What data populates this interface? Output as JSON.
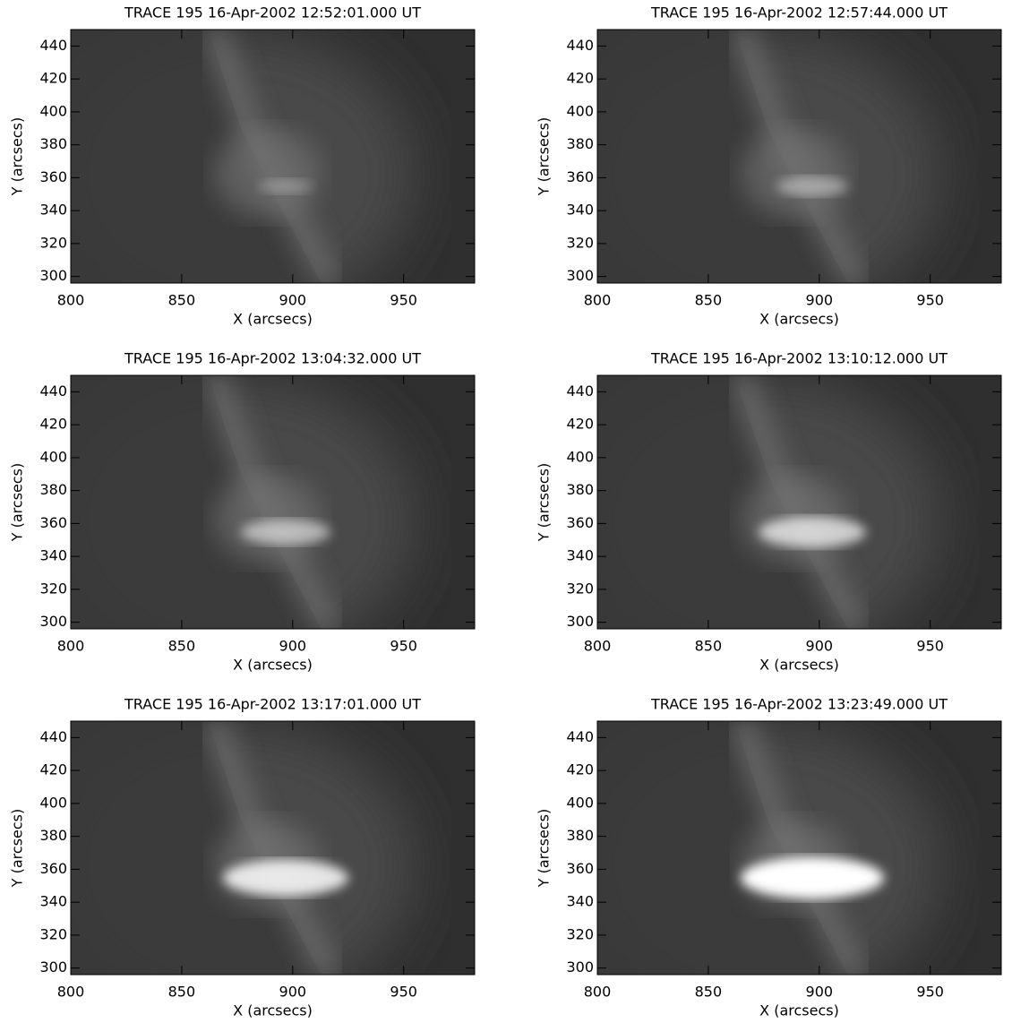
{
  "chart_data": [
    {
      "type": "image",
      "title": "TRACE 195 16-Apr-2002 12:52:01.000 UT",
      "xlabel": "X (arcsecs)",
      "ylabel": "Y (arcsecs)",
      "xlim": [
        800,
        982
      ],
      "ylim": [
        296,
        450
      ],
      "xticks": [
        800,
        850,
        900,
        950
      ],
      "yticks": [
        300,
        320,
        340,
        360,
        380,
        400,
        420,
        440
      ]
    },
    {
      "type": "image",
      "title": "TRACE 195 16-Apr-2002 12:57:44.000 UT",
      "xlabel": "X (arcsecs)",
      "ylabel": "Y (arcsecs)",
      "xlim": [
        800,
        982
      ],
      "ylim": [
        296,
        450
      ],
      "xticks": [
        800,
        850,
        900,
        950
      ],
      "yticks": [
        300,
        320,
        340,
        360,
        380,
        400,
        420,
        440
      ]
    },
    {
      "type": "image",
      "title": "TRACE 195 16-Apr-2002 13:04:32.000 UT",
      "xlabel": "X (arcsecs)",
      "ylabel": "Y (arcsecs)",
      "xlim": [
        800,
        982
      ],
      "ylim": [
        296,
        450
      ],
      "xticks": [
        800,
        850,
        900,
        950
      ],
      "yticks": [
        300,
        320,
        340,
        360,
        380,
        400,
        420,
        440
      ]
    },
    {
      "type": "image",
      "title": "TRACE 195 16-Apr-2002 13:10:12.000 UT",
      "xlabel": "X (arcsecs)",
      "ylabel": "Y (arcsecs)",
      "xlim": [
        800,
        982
      ],
      "ylim": [
        296,
        450
      ],
      "xticks": [
        800,
        850,
        900,
        950
      ],
      "yticks": [
        300,
        320,
        340,
        360,
        380,
        400,
        420,
        440
      ]
    },
    {
      "type": "image",
      "title": "TRACE 195 16-Apr-2002 13:17:01.000 UT",
      "xlabel": "X (arcsecs)",
      "ylabel": "Y (arcsecs)",
      "xlim": [
        800,
        982
      ],
      "ylim": [
        296,
        450
      ],
      "xticks": [
        800,
        850,
        900,
        950
      ],
      "yticks": [
        300,
        320,
        340,
        360,
        380,
        400,
        420,
        440
      ]
    },
    {
      "type": "image",
      "title": "TRACE 195 16-Apr-2002 13:23:49.000 UT",
      "xlabel": "X (arcsecs)",
      "ylabel": "Y (arcsecs)",
      "xlim": [
        800,
        982
      ],
      "ylim": [
        296,
        450
      ],
      "xticks": [
        800,
        850,
        900,
        950
      ],
      "yticks": [
        300,
        320,
        340,
        360,
        380,
        400,
        420,
        440
      ]
    }
  ]
}
